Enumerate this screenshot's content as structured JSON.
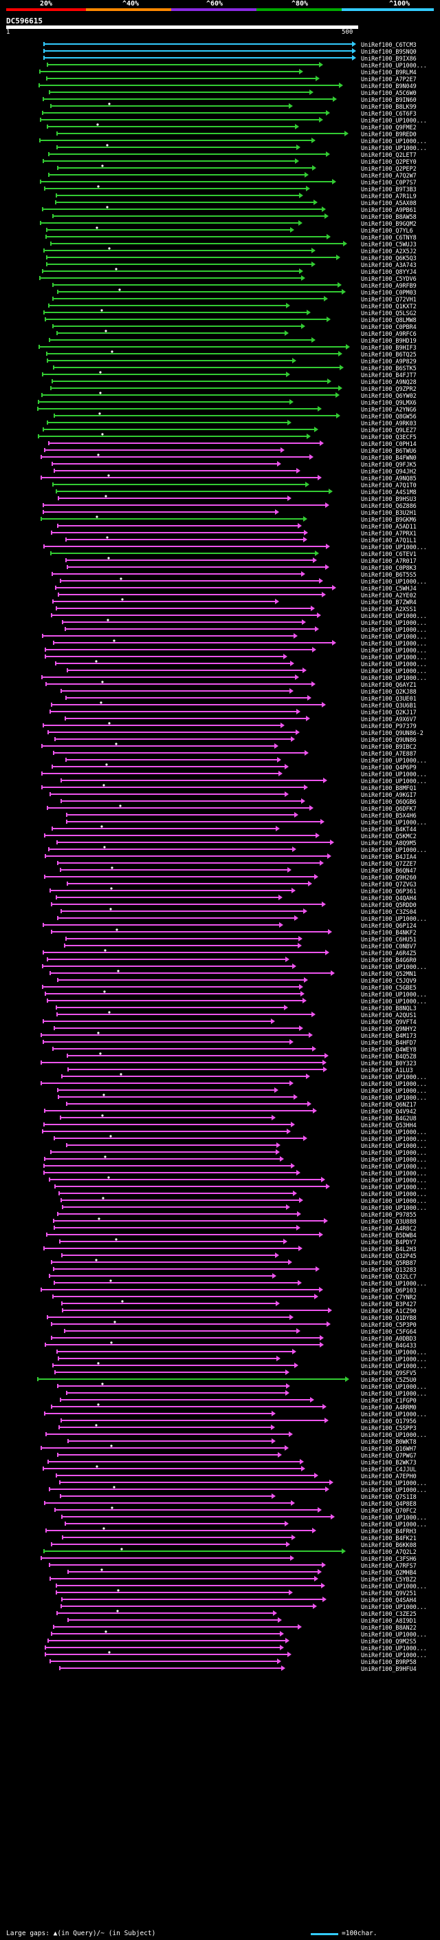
{
  "legend": {
    "labels": [
      "20%",
      "^40%",
      "^60%",
      "^80%",
      "^100%"
    ],
    "colors": [
      "#ff0000",
      "#ff8800",
      "#8a2be2",
      "#00aa00",
      "#33ccff"
    ]
  },
  "query": {
    "id": "DC596615",
    "ruler_start": "1",
    "ruler_end": "500"
  },
  "colors": {
    "cyan": "#33ccff",
    "green": "#33cc33",
    "magenta": "#ee55ee",
    "gap": "#ffffff"
  },
  "hits": [
    {
      "id": "UniRef100_C6TCM3",
      "color": "cyan"
    },
    {
      "id": "UniRef100_B9SNQ0",
      "color": "cyan"
    },
    {
      "id": "UniRef100_B9IX86",
      "color": "cyan"
    },
    {
      "id": "UniRef100_UP1000...",
      "color": "green"
    },
    {
      "id": "UniRef100_B9RLM4",
      "color": "green"
    },
    {
      "id": "UniRef100_A7P2E7",
      "color": "green"
    },
    {
      "id": "UniRef100_B9N049",
      "color": "green"
    },
    {
      "id": "UniRef100_A5C6W0",
      "color": "green"
    },
    {
      "id": "UniRef100_B9IN60",
      "color": "green"
    },
    {
      "id": "UniRef100_B8LK99",
      "color": "green"
    },
    {
      "id": "UniRef100_C6T6F3",
      "color": "green"
    },
    {
      "id": "UniRef100_UP1000...",
      "color": "green"
    },
    {
      "id": "UniRef100_Q9FME2",
      "color": "green"
    },
    {
      "id": "UniRef100_B9RED0",
      "color": "green"
    },
    {
      "id": "UniRef100_UP1000...",
      "color": "green"
    },
    {
      "id": "UniRef100_UP1000...",
      "color": "green"
    },
    {
      "id": "UniRef100_Q2LET7",
      "color": "green"
    },
    {
      "id": "UniRef100_Q2PEY0",
      "color": "green"
    },
    {
      "id": "UniRef100_Q2PEP2",
      "color": "green"
    },
    {
      "id": "UniRef100_A7Q2W7",
      "color": "green"
    },
    {
      "id": "UniRef100_C0P7S7",
      "color": "green"
    },
    {
      "id": "UniRef100_B9T3B3",
      "color": "green"
    },
    {
      "id": "UniRef100_A7R1L9",
      "color": "green"
    },
    {
      "id": "UniRef100_A5AX08",
      "color": "green"
    },
    {
      "id": "UniRef100_A9PB61",
      "color": "green"
    },
    {
      "id": "UniRef100_B8AW58",
      "color": "green"
    },
    {
      "id": "UniRef100_B9GQM2",
      "color": "green"
    },
    {
      "id": "UniRef100_Q7YL6",
      "color": "green"
    },
    {
      "id": "UniRef100_C6TNY8",
      "color": "green"
    },
    {
      "id": "UniRef100_C5WUJ3",
      "color": "green"
    },
    {
      "id": "UniRef100_A2X5J2",
      "color": "green"
    },
    {
      "id": "UniRef100_Q6K5Q3",
      "color": "green"
    },
    {
      "id": "UniRef100_A3A743",
      "color": "green"
    },
    {
      "id": "UniRef100_Q8YYJ4",
      "color": "green"
    },
    {
      "id": "UniRef100_C5YDV6",
      "color": "green"
    },
    {
      "id": "UniRef100_A9RFB9",
      "color": "green"
    },
    {
      "id": "UniRef100_C0PM03",
      "color": "green"
    },
    {
      "id": "UniRef100_Q72VH1",
      "color": "green"
    },
    {
      "id": "UniRef100_Q1KXT2",
      "color": "green"
    },
    {
      "id": "UniRef100_Q5LSG2",
      "color": "green"
    },
    {
      "id": "UniRef100_Q8LMW8",
      "color": "green"
    },
    {
      "id": "UniRef100_C0PBR4",
      "color": "green"
    },
    {
      "id": "UniRef100_A9RFC6",
      "color": "green"
    },
    {
      "id": "UniRef100_B9HD19",
      "color": "green"
    },
    {
      "id": "UniRef100_B9HIF3",
      "color": "green"
    },
    {
      "id": "UniRef100_B6TQ25",
      "color": "green"
    },
    {
      "id": "UniRef100_A9P829",
      "color": "green"
    },
    {
      "id": "UniRef100_B6STK5",
      "color": "green"
    },
    {
      "id": "UniRef100_B4FJT7",
      "color": "green"
    },
    {
      "id": "UniRef100_A9NQ28",
      "color": "green"
    },
    {
      "id": "UniRef100_Q9ZPR2",
      "color": "green"
    },
    {
      "id": "UniRef100_Q6YW02",
      "color": "green"
    },
    {
      "id": "UniRef100_Q9LMX6",
      "color": "green"
    },
    {
      "id": "UniRef100_A2YNG6",
      "color": "green"
    },
    {
      "id": "UniRef100_Q8GW56",
      "color": "green"
    },
    {
      "id": "UniRef100_A9RK03",
      "color": "green"
    },
    {
      "id": "UniRef100_Q9LEZ7",
      "color": "green"
    },
    {
      "id": "UniRef100_Q3ECF5",
      "color": "green"
    },
    {
      "id": "UniRef100_C0PH14",
      "color": "magenta"
    },
    {
      "id": "UniRef100_B6TWU6",
      "color": "magenta"
    },
    {
      "id": "UniRef100_B4FWN0",
      "color": "magenta"
    },
    {
      "id": "UniRef100_Q9FJK5",
      "color": "magenta"
    },
    {
      "id": "UniRef100_Q94JH2",
      "color": "magenta"
    },
    {
      "id": "UniRef100_A9NQ85",
      "color": "magenta"
    },
    {
      "id": "UniRef100_A7Q1T0",
      "color": "green"
    },
    {
      "id": "UniRef100_A4S1M8",
      "color": "green"
    },
    {
      "id": "UniRef100_B9HSU3",
      "color": "magenta"
    },
    {
      "id": "UniRef100_Q6Z886",
      "color": "magenta"
    },
    {
      "id": "UniRef100_B3U2H1",
      "color": "magenta"
    },
    {
      "id": "UniRef100_B9GKM6",
      "color": "green"
    },
    {
      "id": "UniRef100_A5AD11",
      "color": "magenta"
    },
    {
      "id": "UniRef100_A7PRX1",
      "color": "magenta"
    },
    {
      "id": "UniRef100_A7Q1L1",
      "color": "magenta"
    },
    {
      "id": "UniRef100_UP1000...",
      "color": "magenta"
    },
    {
      "id": "UniRef100_C6TEV1",
      "color": "green"
    },
    {
      "id": "UniRef100_A7R017",
      "color": "magenta"
    },
    {
      "id": "UniRef100_C0P8K3",
      "color": "magenta"
    },
    {
      "id": "UniRef100_B6T5S5",
      "color": "magenta"
    },
    {
      "id": "UniRef100_UP1000...",
      "color": "magenta"
    },
    {
      "id": "UniRef100_C5WHJ4",
      "color": "magenta"
    },
    {
      "id": "UniRef100_A2YE02",
      "color": "magenta"
    },
    {
      "id": "UniRef100_B7ZWR4",
      "color": "magenta"
    },
    {
      "id": "UniRef100_A2XSS1",
      "color": "magenta"
    },
    {
      "id": "UniRef100_UP1000...",
      "color": "magenta"
    },
    {
      "id": "UniRef100_UP1000...",
      "color": "magenta"
    },
    {
      "id": "UniRef100_UP1000...",
      "color": "magenta"
    },
    {
      "id": "UniRef100_UP1000...",
      "color": "magenta"
    },
    {
      "id": "UniRef100_UP1000...",
      "color": "magenta"
    },
    {
      "id": "UniRef100_UP1000...",
      "color": "magenta"
    },
    {
      "id": "UniRef100_UP1000...",
      "color": "magenta"
    },
    {
      "id": "UniRef100_UP1000...",
      "color": "magenta"
    },
    {
      "id": "UniRef100_UP1000...",
      "color": "magenta"
    },
    {
      "id": "UniRef100_UP1000...",
      "color": "magenta"
    },
    {
      "id": "UniRef100_Q6AYZ1",
      "color": "magenta"
    },
    {
      "id": "UniRef100_Q2KJ88",
      "color": "magenta"
    },
    {
      "id": "UniRef100_Q3UE01",
      "color": "magenta"
    },
    {
      "id": "UniRef100_Q3U6B1",
      "color": "magenta"
    },
    {
      "id": "UniRef100_Q2KJ17",
      "color": "magenta"
    },
    {
      "id": "UniRef100_A9X6V7",
      "color": "magenta"
    },
    {
      "id": "UniRef100_P97379",
      "color": "magenta"
    },
    {
      "id": "UniRef100_Q9UN86-2",
      "color": "magenta"
    },
    {
      "id": "UniRef100_Q9UN86",
      "color": "magenta"
    },
    {
      "id": "UniRef100_B9IBC2",
      "color": "magenta"
    },
    {
      "id": "UniRef100_A7E887",
      "color": "magenta"
    },
    {
      "id": "UniRef100_UP1000...",
      "color": "magenta"
    },
    {
      "id": "UniRef100_Q4P6P9",
      "color": "magenta"
    },
    {
      "id": "UniRef100_UP1000...",
      "color": "magenta"
    },
    {
      "id": "UniRef100_UP1000...",
      "color": "magenta"
    },
    {
      "id": "UniRef100_B8MFQ1",
      "color": "magenta"
    },
    {
      "id": "UniRef100_A9KGI7",
      "color": "magenta"
    },
    {
      "id": "UniRef100_Q6QGB6",
      "color": "magenta"
    },
    {
      "id": "UniRef100_Q6DFK7",
      "color": "magenta"
    },
    {
      "id": "UniRef100_B5X4H6",
      "color": "magenta"
    },
    {
      "id": "UniRef100_UP1000...",
      "color": "magenta"
    },
    {
      "id": "UniRef100_B4KT44",
      "color": "magenta"
    },
    {
      "id": "UniRef100_Q5KMC2",
      "color": "magenta"
    },
    {
      "id": "UniRef100_A8Q9M5",
      "color": "magenta"
    },
    {
      "id": "UniRef100_UP1000...",
      "color": "magenta"
    },
    {
      "id": "UniRef100_B4JIA4",
      "color": "magenta"
    },
    {
      "id": "UniRef100_Q7ZZE7",
      "color": "magenta"
    },
    {
      "id": "UniRef100_B6QN47",
      "color": "magenta"
    },
    {
      "id": "UniRef100_Q9H260",
      "color": "magenta"
    },
    {
      "id": "UniRef100_Q7ZVG3",
      "color": "magenta"
    },
    {
      "id": "UniRef100_Q6P361",
      "color": "magenta"
    },
    {
      "id": "UniRef100_Q4QAH4",
      "color": "magenta"
    },
    {
      "id": "UniRef100_Q5RDD0",
      "color": "magenta"
    },
    {
      "id": "UniRef100_C3ZS04",
      "color": "magenta"
    },
    {
      "id": "UniRef100_UP1000...",
      "color": "magenta"
    },
    {
      "id": "UniRef100_Q6P124",
      "color": "magenta"
    },
    {
      "id": "UniRef100_B4NKF2",
      "color": "magenta"
    },
    {
      "id": "UniRef100_C6HU51",
      "color": "magenta"
    },
    {
      "id": "UniRef100_C0NBV7",
      "color": "magenta"
    },
    {
      "id": "UniRef100_A6R4Z5",
      "color": "magenta"
    },
    {
      "id": "UniRef100_B4G6R0",
      "color": "magenta"
    },
    {
      "id": "UniRef100_UP1000...",
      "color": "magenta"
    },
    {
      "id": "UniRef100_Q52MN1",
      "color": "magenta"
    },
    {
      "id": "UniRef100_C5JQV9",
      "color": "magenta"
    },
    {
      "id": "UniRef100_C5GBE5",
      "color": "magenta"
    },
    {
      "id": "UniRef100_UP1000...",
      "color": "magenta"
    },
    {
      "id": "UniRef100_UP1000...",
      "color": "magenta"
    },
    {
      "id": "UniRef100_B8NQL3",
      "color": "magenta"
    },
    {
      "id": "UniRef100_A2QUS1",
      "color": "magenta"
    },
    {
      "id": "UniRef100_Q9VFT4",
      "color": "magenta"
    },
    {
      "id": "UniRef100_Q9NHY2",
      "color": "magenta"
    },
    {
      "id": "UniRef100_B4M173",
      "color": "magenta"
    },
    {
      "id": "UniRef100_B4HFD7",
      "color": "magenta"
    },
    {
      "id": "UniRef100_Q4WEY8",
      "color": "magenta"
    },
    {
      "id": "UniRef100_B4Q5Z8",
      "color": "magenta"
    },
    {
      "id": "UniRef100_B0Y323",
      "color": "magenta"
    },
    {
      "id": "UniRef100_A1LU3",
      "color": "magenta"
    },
    {
      "id": "UniRef100_UP1000...",
      "color": "magenta"
    },
    {
      "id": "UniRef100_UP1000...",
      "color": "magenta"
    },
    {
      "id": "UniRef100_UP1000...",
      "color": "magenta"
    },
    {
      "id": "UniRef100_UP1000...",
      "color": "magenta"
    },
    {
      "id": "UniRef100_Q6NZ17",
      "color": "magenta"
    },
    {
      "id": "UniRef100_Q4V942",
      "color": "magenta"
    },
    {
      "id": "UniRef100_B4G2U8",
      "color": "magenta"
    },
    {
      "id": "UniRef100_Q53HH4",
      "color": "magenta"
    },
    {
      "id": "UniRef100_UP1000...",
      "color": "magenta"
    },
    {
      "id": "UniRef100_UP1000...",
      "color": "magenta"
    },
    {
      "id": "UniRef100_UP1000...",
      "color": "magenta"
    },
    {
      "id": "UniRef100_UP1000...",
      "color": "magenta"
    },
    {
      "id": "UniRef100_UP1000...",
      "color": "magenta"
    },
    {
      "id": "UniRef100_UP1000...",
      "color": "magenta"
    },
    {
      "id": "UniRef100_UP1000...",
      "color": "magenta"
    },
    {
      "id": "UniRef100_UP1000...",
      "color": "magenta"
    },
    {
      "id": "UniRef100_UP1000...",
      "color": "magenta"
    },
    {
      "id": "UniRef100_UP1000...",
      "color": "magenta"
    },
    {
      "id": "UniRef100_UP1000...",
      "color": "magenta"
    },
    {
      "id": "UniRef100_UP1000...",
      "color": "magenta"
    },
    {
      "id": "UniRef100_P97855",
      "color": "magenta"
    },
    {
      "id": "UniRef100_Q3U888",
      "color": "magenta"
    },
    {
      "id": "UniRef100_A4R8C2",
      "color": "magenta"
    },
    {
      "id": "UniRef100_B5DWB4",
      "color": "magenta"
    },
    {
      "id": "UniRef100_B4PDY7",
      "color": "magenta"
    },
    {
      "id": "UniRef100_B4L2H3",
      "color": "magenta"
    },
    {
      "id": "UniRef100_Q32P45",
      "color": "magenta"
    },
    {
      "id": "UniRef100_Q5RB87",
      "color": "magenta"
    },
    {
      "id": "UniRef100_Q13283",
      "color": "magenta"
    },
    {
      "id": "UniRef100_Q32LC7",
      "color": "magenta"
    },
    {
      "id": "UniRef100_UP1000...",
      "color": "magenta"
    },
    {
      "id": "UniRef100_Q6P103",
      "color": "magenta"
    },
    {
      "id": "UniRef100_C7YNR2",
      "color": "magenta"
    },
    {
      "id": "UniRef100_B3P427",
      "color": "magenta"
    },
    {
      "id": "UniRef100_A1CZ90",
      "color": "magenta"
    },
    {
      "id": "UniRef100_Q1DYB8",
      "color": "magenta"
    },
    {
      "id": "UniRef100_C5P3P0",
      "color": "magenta"
    },
    {
      "id": "UniRef100_C5FG64",
      "color": "magenta"
    },
    {
      "id": "UniRef100_A0DBD3",
      "color": "magenta"
    },
    {
      "id": "UniRef100_B4G433",
      "color": "magenta"
    },
    {
      "id": "UniRef100_UP1000...",
      "color": "magenta"
    },
    {
      "id": "UniRef100_UP1000...",
      "color": "magenta"
    },
    {
      "id": "UniRef100_UP1000...",
      "color": "magenta"
    },
    {
      "id": "UniRef100_Q9SFV5",
      "color": "magenta"
    },
    {
      "id": "UniRef100_C5Z5U0",
      "color": "green"
    },
    {
      "id": "UniRef100_UP1000...",
      "color": "magenta"
    },
    {
      "id": "UniRef100_UP1000...",
      "color": "magenta"
    },
    {
      "id": "UniRef100_C1FGP0",
      "color": "magenta"
    },
    {
      "id": "UniRef100_A4RRM0",
      "color": "magenta"
    },
    {
      "id": "UniRef100_UP1000...",
      "color": "magenta"
    },
    {
      "id": "UniRef100_Q17956",
      "color": "magenta"
    },
    {
      "id": "UniRef100_C5SPP3",
      "color": "magenta"
    },
    {
      "id": "UniRef100_UP1000...",
      "color": "magenta"
    },
    {
      "id": "UniRef100_B0WKT8",
      "color": "magenta"
    },
    {
      "id": "UniRef100_Q16WH7",
      "color": "magenta"
    },
    {
      "id": "UniRef100_Q7PWG7",
      "color": "magenta"
    },
    {
      "id": "UniRef100_B2WK73",
      "color": "magenta"
    },
    {
      "id": "UniRef100_C4JJUL",
      "color": "magenta"
    },
    {
      "id": "UniRef100_A7EPH0",
      "color": "magenta"
    },
    {
      "id": "UniRef100_UP1000...",
      "color": "magenta"
    },
    {
      "id": "UniRef100_UP1000...",
      "color": "magenta"
    },
    {
      "id": "UniRef100_Q7S1I8",
      "color": "magenta"
    },
    {
      "id": "UniRef100_Q4P8E8",
      "color": "magenta"
    },
    {
      "id": "UniRef100_Q70FC2",
      "color": "magenta"
    },
    {
      "id": "UniRef100_UP1000...",
      "color": "magenta"
    },
    {
      "id": "UniRef100_UP1000...",
      "color": "magenta"
    },
    {
      "id": "UniRef100_B4FRH3",
      "color": "magenta"
    },
    {
      "id": "UniRef100_B4FK21",
      "color": "magenta"
    },
    {
      "id": "UniRef100_B6KK08",
      "color": "magenta"
    },
    {
      "id": "UniRef100_A7Q2L2",
      "color": "green"
    },
    {
      "id": "UniRef100_C3FSH6",
      "color": "magenta"
    },
    {
      "id": "UniRef100_A7RFS7",
      "color": "magenta"
    },
    {
      "id": "UniRef100_Q2MHB4",
      "color": "magenta"
    },
    {
      "id": "UniRef100_C5YBZ2",
      "color": "magenta"
    },
    {
      "id": "UniRef100_UP1000...",
      "color": "magenta"
    },
    {
      "id": "UniRef100_Q9V251",
      "color": "magenta"
    },
    {
      "id": "UniRef100_Q4SAH4",
      "color": "magenta"
    },
    {
      "id": "UniRef100_UP1000...",
      "color": "magenta"
    },
    {
      "id": "UniRef100_C3ZE25",
      "color": "magenta"
    },
    {
      "id": "UniRef100_A8I9D1",
      "color": "magenta"
    },
    {
      "id": "UniRef100_B8AN22",
      "color": "magenta"
    },
    {
      "id": "UniRef100_UP1000...",
      "color": "magenta"
    },
    {
      "id": "UniRef100_Q9M2S5",
      "color": "magenta"
    },
    {
      "id": "UniRef100_UP1000...",
      "color": "magenta"
    },
    {
      "id": "UniRef100_UP1000...",
      "color": "magenta"
    },
    {
      "id": "UniRef100_B9RP58",
      "color": "magenta"
    },
    {
      "id": "UniRef100_B9HFU4",
      "color": "magenta"
    }
  ],
  "footer": {
    "text": "Large gaps: ▲(in Query)/~ (in Subject)",
    "scale_text": "=100char."
  }
}
